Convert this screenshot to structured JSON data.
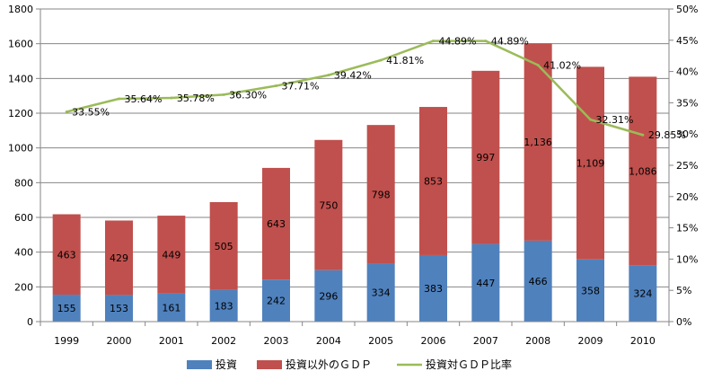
{
  "chart_data": {
    "type": "bar",
    "stacked": true,
    "categories": [
      "1999",
      "2000",
      "2001",
      "2002",
      "2003",
      "2004",
      "2005",
      "2006",
      "2007",
      "2008",
      "2009",
      "2010"
    ],
    "series": [
      {
        "name": "投資",
        "type": "bar",
        "axis": "left",
        "color": "#4F81BD",
        "values": [
          155,
          153,
          161,
          183,
          242,
          296,
          334,
          383,
          447,
          466,
          358,
          324
        ],
        "labels": [
          "155",
          "153",
          "161",
          "183",
          "242",
          "296",
          "334",
          "383",
          "447",
          "466",
          "358",
          "324"
        ]
      },
      {
        "name": "投資以外のＧＤＰ",
        "type": "bar",
        "axis": "left",
        "color": "#C0504D",
        "values": [
          463,
          429,
          449,
          505,
          643,
          750,
          798,
          853,
          997,
          1136,
          1109,
          1086
        ],
        "labels": [
          "463",
          "429",
          "449",
          "505",
          "643",
          "750",
          "798",
          "853",
          "997",
          "1,136",
          "1,109",
          "1,086"
        ]
      },
      {
        "name": "投資対ＧＤＰ比率",
        "type": "line",
        "axis": "right",
        "color": "#9BBB59",
        "values": [
          33.55,
          35.64,
          35.78,
          36.3,
          37.71,
          39.42,
          41.81,
          44.89,
          44.89,
          41.02,
          32.31,
          29.85
        ],
        "labels": [
          "33.55%",
          "35.64%",
          "35.78%",
          "36.30%",
          "37.71%",
          "39.42%",
          "41.81%",
          "44.89%",
          "44.89%",
          "41.02%",
          "32.31%",
          "29.85%"
        ]
      }
    ],
    "y_left": {
      "min": 0,
      "max": 1800,
      "step": 200,
      "ticks": [
        "0",
        "200",
        "400",
        "600",
        "800",
        "1000",
        "1200",
        "1400",
        "1600",
        "1800"
      ]
    },
    "y_right": {
      "min": 0,
      "max": 50,
      "step": 5,
      "ticks": [
        "0%",
        "5%",
        "10%",
        "15%",
        "20%",
        "25%",
        "30%",
        "35%",
        "40%",
        "45%",
        "50%"
      ]
    },
    "grid": true,
    "legend_position": "bottom"
  }
}
